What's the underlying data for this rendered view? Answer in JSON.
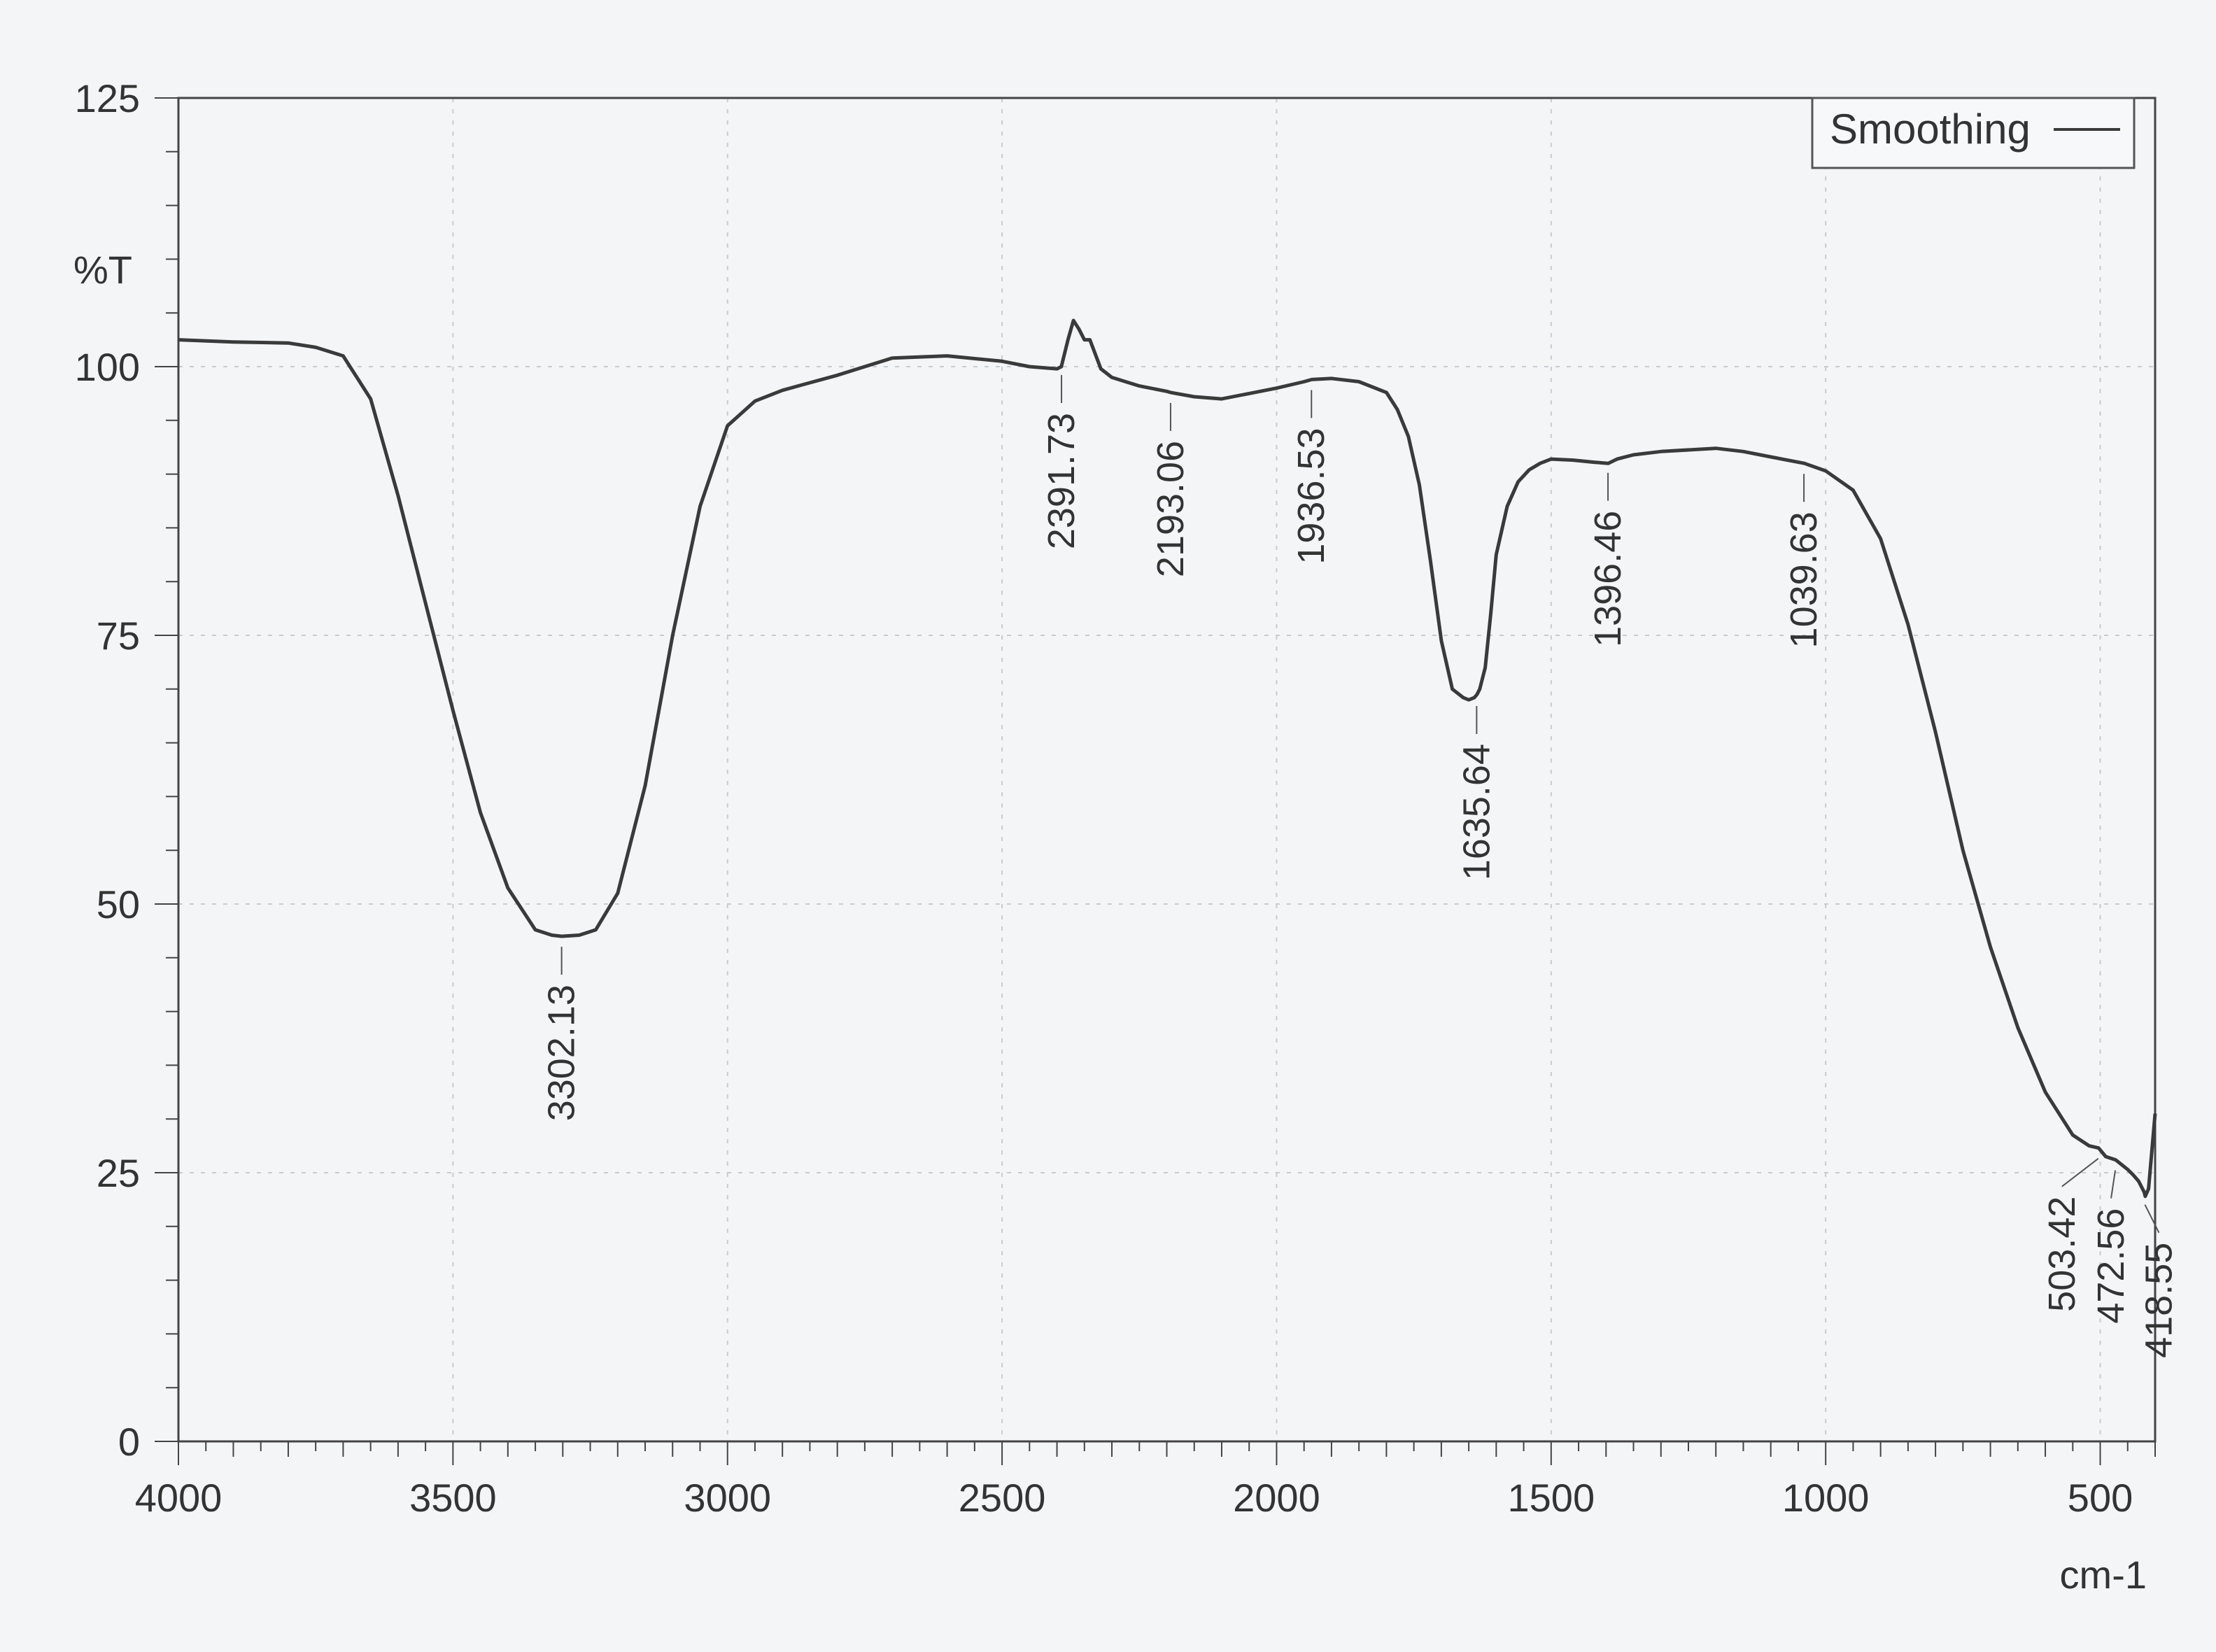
{
  "chart_data": {
    "type": "line",
    "title": "",
    "xlabel": "cm-1",
    "ylabel": "%T",
    "xlim": [
      4000,
      400
    ],
    "ylim": [
      0,
      125
    ],
    "x_reversed": true,
    "x_ticks": [
      4000,
      3500,
      3000,
      2500,
      2000,
      1500,
      1000,
      500
    ],
    "x_tick_labels": [
      "4000",
      "3500",
      "3000",
      "2500",
      "2000",
      "1500",
      "1000",
      "500"
    ],
    "y_ticks": [
      0,
      25,
      50,
      75,
      100,
      125
    ],
    "y_tick_labels": [
      "0",
      "25",
      "50",
      "75",
      "100",
      "125"
    ],
    "grid": true,
    "legend": {
      "position": "top-right",
      "entries": [
        "Smoothing"
      ]
    },
    "colors": {
      "line": "#3a3a3a",
      "grid": "#c8ccd0",
      "axis": "#444444",
      "background": "#f3f5f7"
    },
    "series": [
      {
        "name": "Smoothing",
        "x": [
          4000,
          3900,
          3800,
          3750,
          3700,
          3650,
          3600,
          3550,
          3500,
          3450,
          3400,
          3350,
          3320,
          3302,
          3270,
          3240,
          3200,
          3150,
          3100,
          3050,
          3000,
          2950,
          2900,
          2850,
          2800,
          2700,
          2600,
          2500,
          2450,
          2400,
          2392,
          2380,
          2370,
          2360,
          2350,
          2340,
          2320,
          2300,
          2250,
          2200,
          2193,
          2150,
          2100,
          2050,
          2000,
          1950,
          1936,
          1900,
          1850,
          1800,
          1780,
          1760,
          1740,
          1720,
          1700,
          1680,
          1660,
          1650,
          1640,
          1635,
          1630,
          1620,
          1610,
          1600,
          1580,
          1560,
          1540,
          1520,
          1500,
          1460,
          1420,
          1396,
          1380,
          1350,
          1300,
          1200,
          1150,
          1100,
          1039,
          1000,
          950,
          900,
          850,
          800,
          750,
          700,
          650,
          600,
          550,
          520,
          503,
          490,
          472,
          450,
          440,
          430,
          420,
          418,
          412,
          406,
          400
        ],
        "y": [
          102.5,
          102.3,
          102.2,
          101.8,
          101.0,
          97.0,
          88.0,
          78.0,
          68.0,
          58.5,
          51.5,
          47.6,
          47.1,
          47.0,
          47.1,
          47.6,
          51.0,
          61.0,
          75.0,
          87.0,
          94.5,
          96.8,
          97.8,
          98.5,
          99.2,
          100.8,
          101.0,
          100.5,
          100.0,
          99.8,
          100.0,
          102.5,
          104.3,
          103.5,
          102.5,
          102.5,
          99.8,
          99.0,
          98.2,
          97.7,
          97.6,
          97.2,
          97.0,
          97.5,
          98.0,
          98.6,
          98.8,
          98.9,
          98.6,
          97.6,
          96.0,
          93.5,
          89.0,
          82.0,
          74.5,
          70.0,
          69.2,
          69.0,
          69.2,
          69.5,
          70.0,
          72.0,
          77.0,
          82.5,
          87.0,
          89.3,
          90.4,
          91.0,
          91.4,
          91.3,
          91.1,
          91.0,
          91.4,
          91.8,
          92.1,
          92.4,
          92.1,
          91.6,
          91.0,
          90.3,
          88.5,
          84.0,
          76.0,
          66.0,
          55.0,
          46.0,
          38.5,
          32.5,
          28.5,
          27.5,
          27.3,
          26.5,
          26.2,
          25.3,
          24.8,
          24.2,
          23.2,
          22.8,
          23.5,
          27.0,
          30.5
        ]
      }
    ],
    "annotations": [
      {
        "x": 3302.13,
        "label": "3302.13",
        "anchor_y": 47.0
      },
      {
        "x": 2391.73,
        "label": "2391.73",
        "anchor_y": 100.2
      },
      {
        "x": 2193.06,
        "label": "2193.06",
        "anchor_y": 97.6
      },
      {
        "x": 1936.53,
        "label": "1936.53",
        "anchor_y": 98.8
      },
      {
        "x": 1635.64,
        "label": "1635.64",
        "anchor_y": 69.4
      },
      {
        "x": 1396.46,
        "label": "1396.46",
        "anchor_y": 91.1
      },
      {
        "x": 1039.63,
        "label": "1039.63",
        "anchor_y": 91.0
      },
      {
        "x": 503.42,
        "label": "503.42",
        "anchor_y": 27.3
      },
      {
        "x": 472.56,
        "label": "472.56",
        "anchor_y": 26.2
      },
      {
        "x": 418.55,
        "label": "418.55",
        "anchor_y": 23.0
      }
    ]
  }
}
